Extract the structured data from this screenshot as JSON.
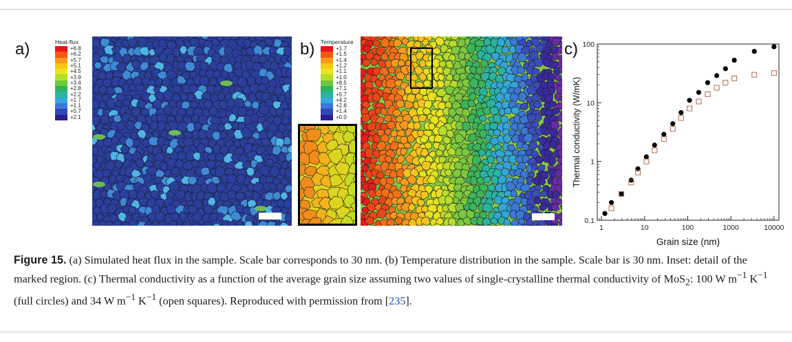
{
  "figure": {
    "panel_a": {
      "label": "a)",
      "legend_title": "Heat-flux",
      "ticks": [
        "+6.8",
        "+6.2",
        "+5.7",
        "+5.1",
        "+4.5",
        "+3.9",
        "+3.4",
        "+2.8",
        "+2.2",
        "+1.7",
        "+1.1",
        "+5.7",
        "+2.1"
      ],
      "colors": [
        "#e8141a",
        "#f25a12",
        "#f89a1a",
        "#f5c814",
        "#e6e61e",
        "#b4dc28",
        "#6ec83c",
        "#2eb45a",
        "#2ab4a0",
        "#3aa6e0",
        "#3c78d8",
        "#3246b8",
        "#2b1e8c"
      ]
    },
    "panel_b": {
      "label": "b)",
      "legend_title": "Temperature",
      "ticks": [
        "+1.7",
        "+1.5",
        "+1.4",
        "+1.2",
        "+1.1",
        "+1.0",
        "+8.5",
        "+7.1",
        "+5.7",
        "+4.2",
        "+2.8",
        "+1.4",
        "+0.0"
      ],
      "colors": [
        "#e8141a",
        "#f25a12",
        "#f89a1a",
        "#f5c814",
        "#e6e61e",
        "#b4dc28",
        "#6ec83c",
        "#2eb45a",
        "#2ab4a0",
        "#3aa6e0",
        "#3c78d8",
        "#3246b8",
        "#2b1e8c"
      ]
    },
    "panel_c": {
      "label": "c)"
    }
  },
  "chart_data": {
    "type": "scatter",
    "xlabel": "Grain size (nm)",
    "ylabel": "Thermal conductivity (W/mK)",
    "x_scale": "log",
    "y_scale": "log",
    "xlim": [
      0.8,
      13000
    ],
    "ylim": [
      0.1,
      100
    ],
    "x_ticks": [
      "1",
      "10",
      "100",
      "1000",
      "10000"
    ],
    "y_ticks": [
      "0.1",
      "1",
      "10",
      "100"
    ],
    "grid": false,
    "series": [
      {
        "marker": "filled-circle",
        "color": "#000000",
        "x": [
          1.2,
          1.7,
          2.9,
          4.9,
          7.0,
          11,
          17,
          28,
          45,
          70,
          110,
          180,
          290,
          470,
          750,
          1200,
          3500,
          10000
        ],
        "y": [
          0.13,
          0.2,
          0.28,
          0.48,
          0.75,
          1.2,
          1.9,
          2.9,
          4.4,
          6.8,
          11,
          15,
          22,
          29,
          38,
          53,
          75,
          90
        ]
      },
      {
        "marker": "open-square",
        "color": "#b06a4a",
        "x": [
          1.7,
          2.9,
          4.9,
          7.0,
          11,
          17,
          28,
          45,
          70,
          110,
          180,
          290,
          470,
          750,
          1200,
          3500,
          10000
        ],
        "y": [
          0.16,
          0.28,
          0.44,
          0.65,
          1.0,
          1.55,
          2.4,
          3.6,
          5.5,
          8.0,
          10.5,
          14,
          18,
          22,
          26,
          30,
          32
        ]
      }
    ]
  },
  "caption": {
    "label": "Figure 15.",
    "text_1": " (a) Simulated heat flux in the sample. Scale bar corresponds to 30 nm. (b) Temperature distribution in the sample. Scale bar is 30 nm. Inset: detail of the marked region. (c) Thermal conductivity as a function of the average grain size assuming two values of single-crystalline thermal conductivity of MoS",
    "sub_2": "2",
    "text_2": ": 100 W m",
    "sup_1": "−1",
    "text_3": " K",
    "sup_2": "−1",
    "text_4": " (full circles) and 34 W m",
    "sup_3": "−1",
    "text_5": " K",
    "sup_4": "−1",
    "text_6": " (open squares). Reproduced with permission from [",
    "ref": "235",
    "text_7": "]."
  }
}
